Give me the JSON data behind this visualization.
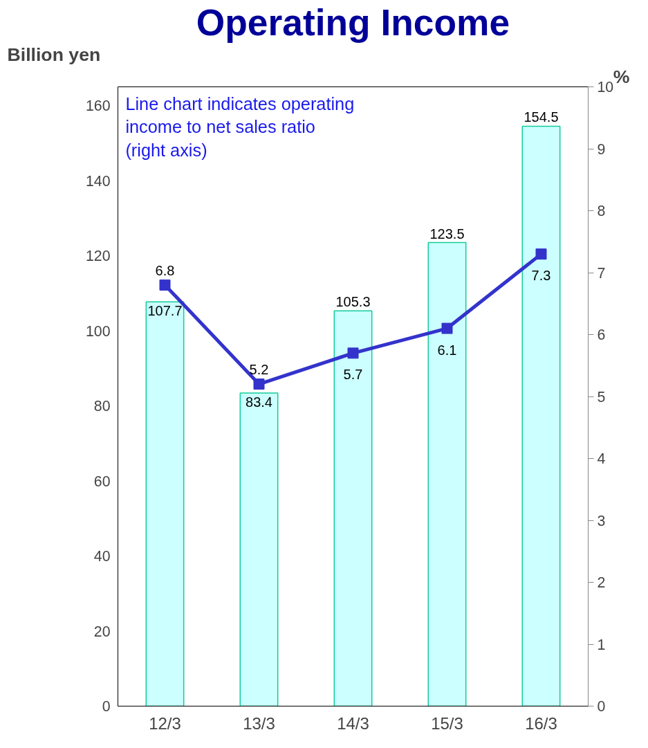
{
  "chart_data": {
    "type": "bar",
    "title": "Operating Income",
    "ylabel": "Billion yen",
    "y2label": "%",
    "annotations": [
      "Line chart indicates operating income to net sales ratio (right axis)"
    ],
    "categories": [
      "12/3",
      "13/3",
      "14/3",
      "15/3",
      "16/3"
    ],
    "ylim": [
      0,
      165
    ],
    "yticks": [
      0,
      20,
      40,
      60,
      80,
      100,
      120,
      140,
      160
    ],
    "y2lim": [
      0,
      10
    ],
    "y2ticks": [
      0,
      1,
      2,
      3,
      4,
      5,
      6,
      7,
      8,
      9,
      10
    ],
    "grid": false,
    "data_labels": true,
    "marker": "square",
    "series": [
      {
        "color": "#ccffff",
        "values": [
          107.7,
          83.4,
          105.3,
          123.5,
          154.5
        ]
      },
      {
        "type": "line",
        "axis": "y2",
        "color": "#3333cc",
        "values": [
          6.8,
          5.2,
          5.7,
          6.1,
          7.3
        ]
      }
    ]
  }
}
